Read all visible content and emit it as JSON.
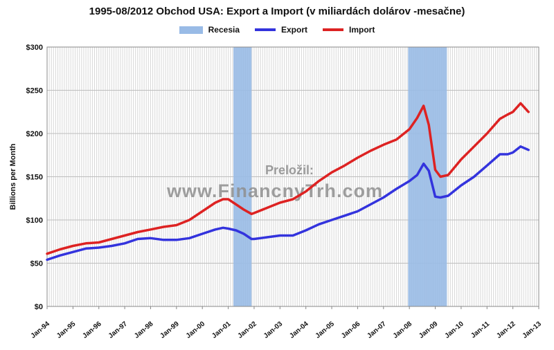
{
  "chart_data": {
    "type": "line",
    "title": "1995-08/2012 Obchod USA: Export a Import (v miliardách dolárov -mesačne)",
    "ylabel": "Billions per Month",
    "xlabel": "",
    "ylim": [
      0,
      300
    ],
    "xlim": [
      1994.0,
      2013.0
    ],
    "yticks": [
      0,
      50,
      100,
      150,
      200,
      250,
      300
    ],
    "ytick_labels": [
      "$0",
      "$50",
      "$100",
      "$150",
      "$200",
      "$250",
      "$300"
    ],
    "xticks": [
      {
        "value": 1994,
        "label": "Jan-94"
      },
      {
        "value": 1995,
        "label": "Jan-95"
      },
      {
        "value": 1996,
        "label": "Jan-96"
      },
      {
        "value": 1997,
        "label": "Jan-97"
      },
      {
        "value": 1998,
        "label": "Jan-98"
      },
      {
        "value": 1999,
        "label": "Jan-99"
      },
      {
        "value": 2000,
        "label": "Jan-00"
      },
      {
        "value": 2001,
        "label": "Jan-01"
      },
      {
        "value": 2002,
        "label": "Jan-02"
      },
      {
        "value": 2003,
        "label": "Jan-03"
      },
      {
        "value": 2004,
        "label": "Jan-04"
      },
      {
        "value": 2005,
        "label": "Jan-05"
      },
      {
        "value": 2006,
        "label": "Jan-06"
      },
      {
        "value": 2007,
        "label": "Jan-07"
      },
      {
        "value": 2008,
        "label": "Jan-08"
      },
      {
        "value": 2009,
        "label": "Jan-09"
      },
      {
        "value": 2010,
        "label": "Jan-10"
      },
      {
        "value": 2011,
        "label": "Jan-11"
      },
      {
        "value": 2012,
        "label": "Jan-12"
      },
      {
        "value": 2013,
        "label": "Jan-13"
      }
    ],
    "grid": true,
    "legend_position": "top",
    "recessions": [
      {
        "name": "Recesia",
        "start": 2001.2,
        "end": 2001.9
      },
      {
        "name": "Recesia",
        "start": 2007.95,
        "end": 2009.45
      }
    ],
    "series": [
      {
        "name": "Export",
        "color": "#3333dd",
        "x": [
          1994.0,
          1994.5,
          1995.0,
          1995.5,
          1996.0,
          1996.5,
          1997.0,
          1997.5,
          1998.0,
          1998.5,
          1999.0,
          1999.5,
          2000.0,
          2000.5,
          2000.8,
          2001.0,
          2001.3,
          2001.6,
          2001.9,
          2002.0,
          2002.5,
          2003.0,
          2003.5,
          2004.0,
          2004.5,
          2005.0,
          2005.5,
          2006.0,
          2006.5,
          2007.0,
          2007.5,
          2008.0,
          2008.3,
          2008.55,
          2008.75,
          2009.0,
          2009.2,
          2009.5,
          2010.0,
          2010.5,
          2011.0,
          2011.5,
          2011.8,
          2012.0,
          2012.3,
          2012.6
        ],
        "values": [
          54,
          59,
          63,
          67,
          68,
          70,
          73,
          78,
          79,
          77,
          77,
          79,
          84,
          89,
          91,
          90,
          88,
          84,
          78,
          78,
          80,
          82,
          82,
          88,
          95,
          100,
          105,
          110,
          118,
          126,
          136,
          145,
          152,
          165,
          157,
          127,
          126,
          128,
          140,
          150,
          163,
          176,
          176,
          178,
          185,
          181
        ]
      },
      {
        "name": "Import",
        "color": "#dd2222",
        "x": [
          1994.0,
          1994.5,
          1995.0,
          1995.5,
          1996.0,
          1996.5,
          1997.0,
          1997.5,
          1998.0,
          1998.5,
          1999.0,
          1999.5,
          2000.0,
          2000.5,
          2000.8,
          2001.0,
          2001.3,
          2001.6,
          2001.9,
          2002.0,
          2002.5,
          2003.0,
          2003.5,
          2004.0,
          2004.5,
          2005.0,
          2005.5,
          2006.0,
          2006.5,
          2007.0,
          2007.5,
          2008.0,
          2008.3,
          2008.55,
          2008.75,
          2009.0,
          2009.2,
          2009.5,
          2010.0,
          2010.5,
          2011.0,
          2011.5,
          2011.8,
          2012.0,
          2012.3,
          2012.6
        ],
        "values": [
          61,
          66,
          70,
          73,
          74,
          78,
          82,
          86,
          89,
          92,
          94,
          100,
          110,
          120,
          124,
          124,
          118,
          112,
          107,
          108,
          114,
          120,
          124,
          133,
          145,
          155,
          163,
          172,
          180,
          187,
          193,
          205,
          218,
          232,
          210,
          158,
          150,
          152,
          170,
          185,
          200,
          217,
          222,
          225,
          235,
          225
        ]
      }
    ]
  },
  "legend": {
    "recession_label": "Recesia",
    "export_label": "Export",
    "import_label": "Import"
  },
  "watermark": {
    "line1": "Preložil:",
    "line2": "www.FinancnyTrh.com"
  },
  "colors": {
    "recession": "#99bbe6",
    "export": "#3333dd",
    "import": "#dd2222",
    "grid": "#d8d8d8"
  }
}
